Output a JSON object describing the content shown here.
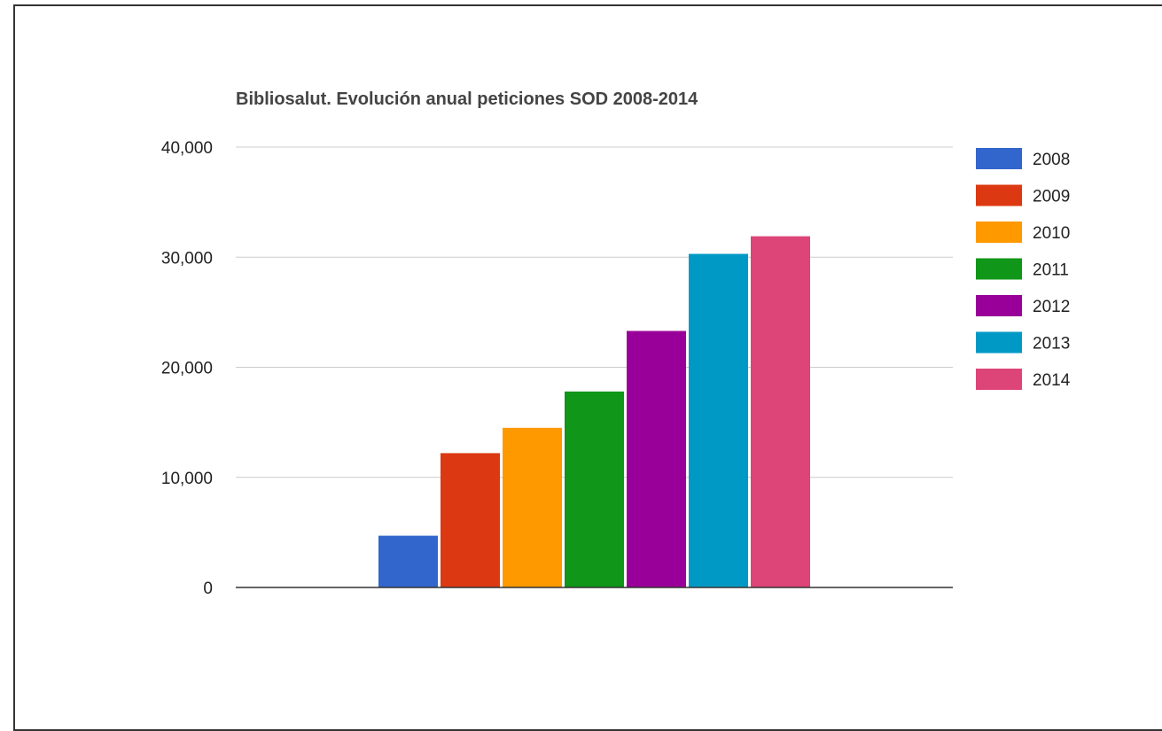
{
  "chart_data": {
    "type": "bar",
    "title": "Bibliosalut. Evolución anual peticiones SOD 2008-2014",
    "xlabel": "",
    "ylabel": "",
    "ylim": [
      0,
      40000
    ],
    "yticks": [
      0,
      10000,
      20000,
      30000,
      40000
    ],
    "ytick_labels": [
      "0",
      "10,000",
      "20,000",
      "30,000",
      "40,000"
    ],
    "grid": true,
    "legend_position": "right",
    "categories": [
      ""
    ],
    "series": [
      {
        "name": "2008",
        "color": "#3366cc",
        "values": [
          4700
        ]
      },
      {
        "name": "2009",
        "color": "#dc3912",
        "values": [
          12200
        ]
      },
      {
        "name": "2010",
        "color": "#ff9900",
        "values": [
          14500
        ]
      },
      {
        "name": "2011",
        "color": "#109618",
        "values": [
          17800
        ]
      },
      {
        "name": "2012",
        "color": "#990099",
        "values": [
          23300
        ]
      },
      {
        "name": "2013",
        "color": "#0099c6",
        "values": [
          30300
        ]
      },
      {
        "name": "2014",
        "color": "#dd4477",
        "values": [
          31900
        ]
      }
    ]
  }
}
